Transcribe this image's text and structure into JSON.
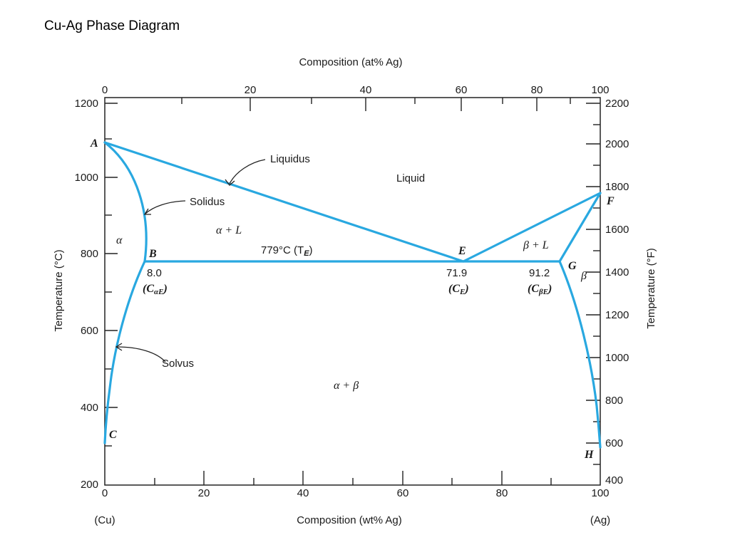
{
  "slide_title": "Cu-Ag Phase Diagram",
  "axes": {
    "top_label": "Composition (at% Ag)",
    "bottom_label": "Composition (wt% Ag)",
    "left_label": "Temperature (°C)",
    "right_label": "Temperature (°F)",
    "top_ticks": [
      "0",
      "20",
      "40",
      "60",
      "80",
      "100"
    ],
    "bottom_ticks": [
      "0",
      "20",
      "40",
      "60",
      "80",
      "100"
    ],
    "left_ticks": [
      "1200",
      "1000",
      "800",
      "600",
      "400",
      "200"
    ],
    "right_ticks": [
      "2200",
      "2000",
      "1800",
      "1600",
      "1400",
      "1200",
      "1000",
      "800",
      "600",
      "400"
    ],
    "bottom_end_left": "(Cu)",
    "bottom_end_right": "(Ag)"
  },
  "labels": {
    "liquidus": "Liquidus",
    "solidus": "Solidus",
    "solvus": "Solvus",
    "liquid": "Liquid",
    "alpha": "α",
    "alpha_plus_L": "α + L",
    "beta_plus_L": "β + L",
    "beta": "β",
    "alpha_plus_beta": "α + β",
    "eutectic_temp": "779°C (T",
    "eutectic_temp_sub": "E",
    "eutectic_temp_close": ")",
    "point_A": "A",
    "point_B": "B",
    "point_C": "C",
    "point_E": "E",
    "point_F": "F",
    "point_G": "G",
    "point_H": "H",
    "b_value": "8.0",
    "b_sym": "(C",
    "b_sym_sub": "αE",
    "b_sym_close": ")",
    "e_value": "71.9",
    "e_sym": "(C",
    "e_sym_sub": "E",
    "e_sym_close": ")",
    "g_value": "91.2",
    "g_sym": "(C",
    "g_sym_sub": "βE",
    "g_sym_close": ")"
  },
  "colors": {
    "phase_line": "#29a8e0",
    "axis": "#222222"
  }
}
